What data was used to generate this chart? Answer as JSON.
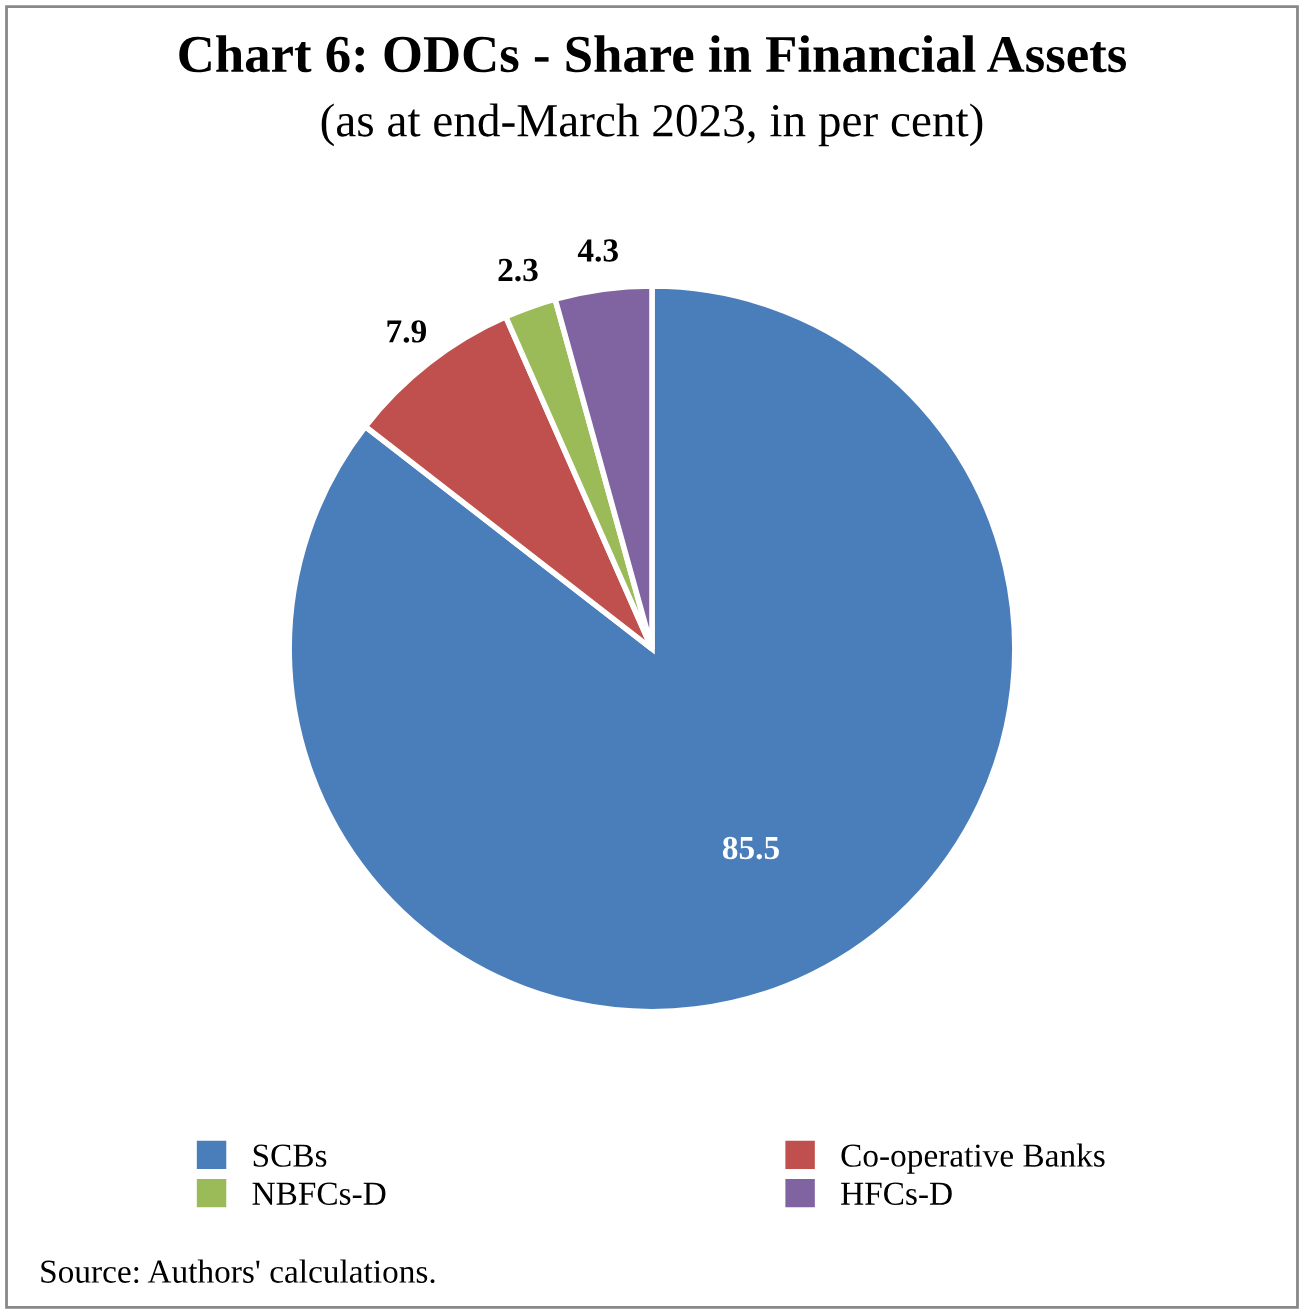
{
  "chart_data": {
    "type": "pie",
    "title": "Chart 6: ODCs - Share in Financial Assets",
    "subtitle": "(as at end-March 2023, in per cent)",
    "categories": [
      "SCBs",
      "Co-operative Banks",
      "NBFCs-D",
      "HFCs-D"
    ],
    "values": [
      85.5,
      7.9,
      2.3,
      4.3
    ],
    "colors": [
      "#4a7ebb",
      "#c0504d",
      "#9bbb59",
      "#8064a2"
    ],
    "data_labels": true,
    "legend": "bottom",
    "annotations": [
      "Source: Authors' calculations."
    ]
  }
}
